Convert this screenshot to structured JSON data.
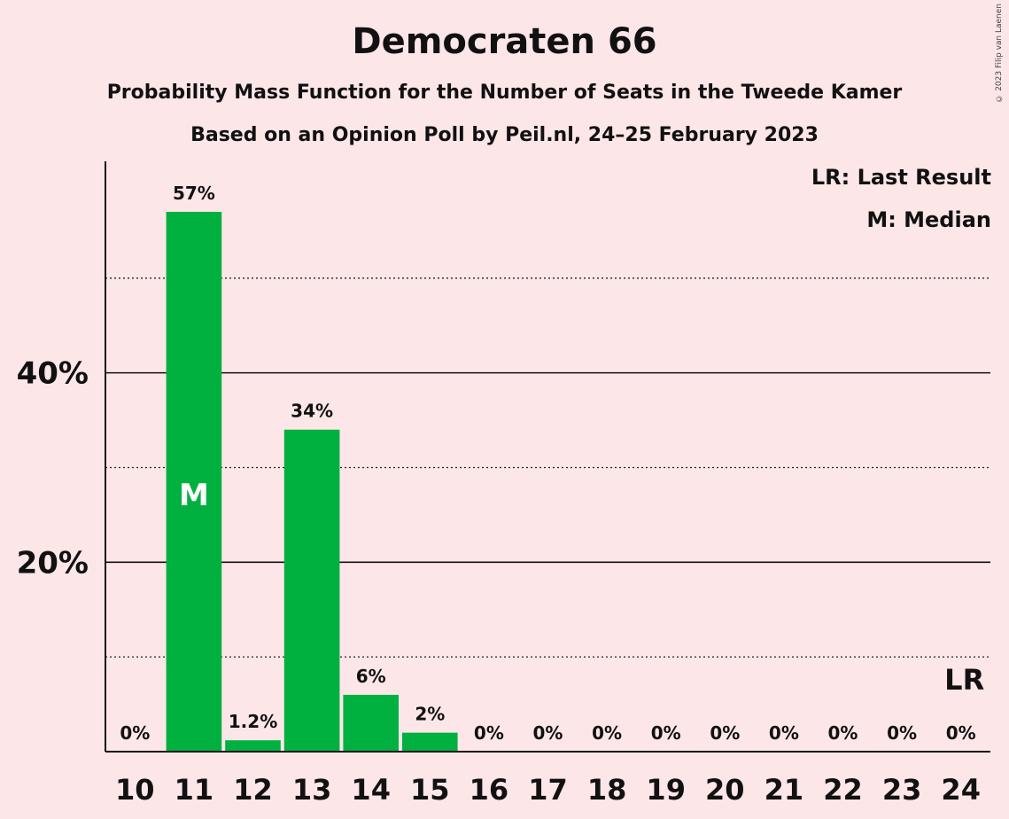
{
  "header": {
    "title": "Democraten 66",
    "subtitle": "Probability Mass Function for the Number of Seats in the Tweede Kamer",
    "source": "Based on an Opinion Poll by Peil.nl, 24–25 February 2023",
    "copyright": "© 2023 Filip van Laenen"
  },
  "legend": {
    "last_result": "LR: Last Result",
    "median": "M: Median"
  },
  "chart_data": {
    "type": "bar",
    "title": "Democraten 66",
    "categories": [
      "10",
      "11",
      "12",
      "13",
      "14",
      "15",
      "16",
      "17",
      "18",
      "19",
      "20",
      "21",
      "22",
      "23",
      "24"
    ],
    "values": [
      0,
      57,
      1.2,
      34,
      6,
      2,
      0,
      0,
      0,
      0,
      0,
      0,
      0,
      0,
      0
    ],
    "value_labels": [
      "0%",
      "57%",
      "1.2%",
      "34%",
      "6%",
      "2%",
      "0%",
      "0%",
      "0%",
      "0%",
      "0%",
      "0%",
      "0%",
      "0%",
      "0%"
    ],
    "ylim": [
      0,
      62
    ],
    "yticks": [
      {
        "value": 20,
        "label": "20%",
        "style": "solid"
      },
      {
        "value": 40,
        "label": "40%",
        "style": "solid"
      }
    ],
    "minor_gridlines": [
      10,
      30,
      50
    ],
    "median": {
      "category": "11",
      "label": "M"
    },
    "last_result": {
      "category": "24",
      "label": "LR"
    },
    "bar_color": "#00b140",
    "background": "#fce6e8"
  }
}
